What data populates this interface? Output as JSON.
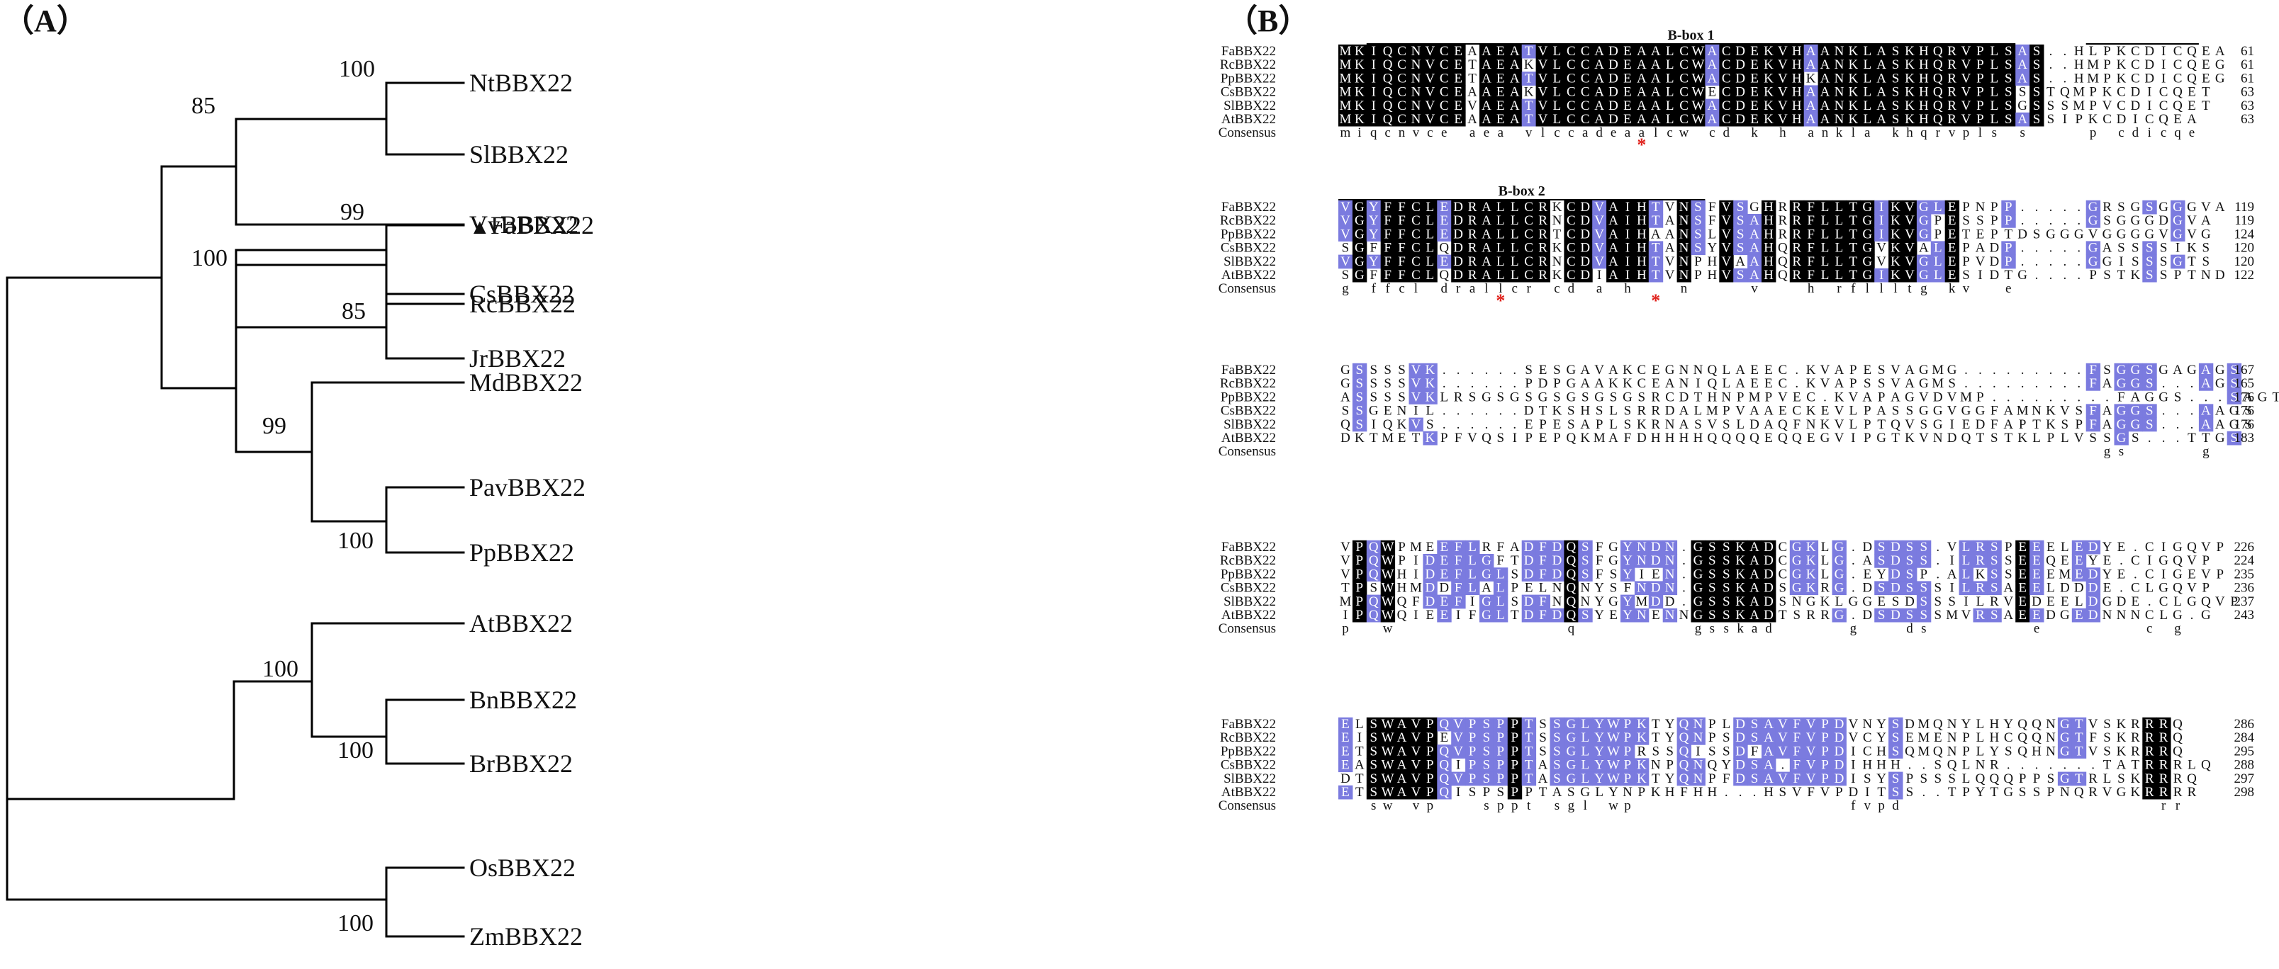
{
  "panel_a": {
    "label": "（A）",
    "marker": "▲",
    "taxa": [
      "NtBBX22",
      "SlBBX22",
      "VvBBX22",
      "CsBBX22",
      "JrBBX22",
      "FaBBX22",
      "RcBBX22",
      "MdBBX22",
      "PavBBX22",
      "PpBBX22",
      "AtBBX22",
      "BnBBX22",
      "BrBBX22",
      "OsBBX22",
      "ZmBBX22"
    ],
    "highlight_taxon": "FaBBX22",
    "bootstrap": [
      "100",
      "85",
      "85",
      "99",
      "100",
      "99",
      "100",
      "100",
      "100",
      "100"
    ]
  },
  "panel_b": {
    "label": "（B）",
    "consensus_label": "Consensus",
    "colors": {
      "identical": "#000000",
      "similar": "#7b7bdf",
      "text": "#111111",
      "mark": "#e0201a"
    },
    "blocks": [
      {
        "features": [
          "B-box 1"
        ],
        "names": [
          "FaBBX22",
          "RcBBX22",
          "PpBBX22",
          "CsBBX22",
          "SlBBX22",
          "AtBBX22"
        ],
        "rows": [
          "MKIQCNVCEAAEATVLCCADEAALCWACDEKVHAANKLASKHQRVPLSAS..HLPKCDICQEA",
          "MKIQCNVCETAEAKVLCCADEAALCWACDEKVHAANKLASKHQRVPLSAS..HMPKCDICQEG",
          "MKIQCNVCETAEATVLCCADEAALCWACDEKVHKANKLASKHQRVPLSAS..HMPKCDICQEG",
          "MKIQCNVCEAAEAKVLCCADEAALCWECDEKVHAANKLASKHQRVPLSSSTQMPKCDICQET",
          "MKIQCNVCEVAEATVLCCADEAALCWACDEKVHAANKLASKHQRVPLSGSSSMPVCDICQET",
          "MKIQCNVCEAAEATVLCCADEAALCWACDEKVHAANKLASKHQRVPLSASSIPKCDICQEA"
        ],
        "ends": [
          "61",
          "61",
          "61",
          "63",
          "63",
          "63"
        ],
        "consensus": "miqcnvce aea vlccadeaalcw cd k h ankla khqrvpls s    p cdicqe",
        "marks": [
          "*"
        ]
      },
      {
        "features": [
          "B-box 2"
        ],
        "names": [
          "FaBBX22",
          "RcBBX22",
          "PpBBX22",
          "CsBBX22",
          "SlBBX22",
          "AtBBX22"
        ],
        "rows": [
          "VGYFFCLEDRALLCRKCDVAIHTVNSFVSGHRRFLLTGIKVGLEPNPP.....GRSGSGGGVA",
          "VGYFFCLEDRALLCRNCDVAIHTANSFVSAHRRFLLTGIKVGPESSPP.....GSGGGDGVA",
          "VGYFFCLEDRALLCRTCDVAIHAANSLVSAHRRFLLTGIKVGPETEPTDSGGGVGGGGVGVG",
          "SGFFFCLQDRALLCRKCDVAIHTANSYVSAHQRFLLTGVKVALEPADP.....GASSSSIKS",
          "VGYFFCLEDRALLCRNCDVAIHTVNPHVAAHQRFLLTGVKVGLEPVDP.....GGISSSGTS",
          "SGFFFCLQDRALLCRKCDIAIHTVNPHVSAHQRFLLTGIKVGLESIDTG....PSTKSSPTND"
        ],
        "ends": [
          "119",
          "119",
          "124",
          "120",
          "120",
          "122"
        ],
        "consensus": "g ffcl drallcr cd a h   n    v   h rfllltg kv  e",
        "marks": [
          "*",
          "*"
        ]
      },
      {
        "features": [],
        "names": [
          "FaBBX22",
          "RcBBX22",
          "PpBBX22",
          "CsBBX22",
          "SlBBX22",
          "AtBBX22"
        ],
        "rows": [
          "GSSSSVK......SESGAVAKCEGNNQLAEEC.KVAPESVAGMG.........FSGGSGAGAGS",
          "GSSSSVK......PDPGAAKKCEANIQLAEEC.KVAPSSVAGMS.........FAGGS...AGS",
          "ASSSSVKLRSGSGSGSGSGSGSRCDTHNPMPVEC.KVAPAGVDVMP.........FAGGS...SAGT",
          "SSGENIL......DTKSHSLSRRDALMPVAAECKEVLPASSGGVGGFAMNKVSFAGGS...AAGS",
          "QSIQKVS......EPESAPLSKRNASVSLDAQFNKVLPTQVSGIEDFAPTKSPFAGGS...AAGS",
          "DKTMETKPFVQSIPEPQKMAFDHHHHQQQQEQQEGVIPGTKVNDQTSTKLPLVSSGS...TTGS"
        ],
        "ends": [
          "167",
          "165",
          "176",
          "176",
          "176",
          "183"
        ],
        "consensus": "                                                      gs     g",
        "marks": []
      },
      {
        "features": [],
        "names": [
          "FaBBX22",
          "RcBBX22",
          "PpBBX22",
          "CsBBX22",
          "SlBBX22",
          "AtBBX22"
        ],
        "rows": [
          "VPQWPMEEFLRFADFDQSFGYNDN.GSSKADCGKLG.DSDSS.VLRSPEEELEDYE.CIGQVP",
          "VPQWPIDEFLGFTDFDQSFGYNDN.GSSKADCGKLG.ASDSS.ILRSSEEQEEYE.CIGQVP",
          "VPQWHIDEFLGLSDFDQSFSYIEN.GSSKADCGKLG.EYDSP.ALKSSEEEMEDYE.CIGEVP",
          "TPSWHMDDFLALPELNQNYSFNDN.GSSKADSGKRG.DSDSSSILRSAEELDDDE.CLGQVP",
          "MPQWQFDEFIGLSDFNQNYGYMDD.GSSKADSNGKLGGESDSSSILRVEDEELDGDE.CLGQVP",
          "IPQWQIEEIFGLTDFDQSYEYNENNGSSKADTSRRG.DSDSSSMVRSAEEDGEDNNNCLG.G"
        ],
        "ends": [
          "226",
          "224",
          "235",
          "236",
          "237",
          "243"
        ],
        "consensus": "p  w            q        gsskad     g   ds       e       c g",
        "marks": []
      },
      {
        "features": [],
        "names": [
          "FaBBX22",
          "RcBBX22",
          "PpBBX22",
          "CsBBX22",
          "SlBBX22",
          "AtBBX22"
        ],
        "rows": [
          "ELSWAVPQVPSPPTSSGLYWPKTYQNPLDSAVFVPDVNYSDMQNYLHYQQNGTVSKRRRQ",
          "EISWAVPEVPSPPTSSGLYWPKTYQNPSDSAVFVPDVCYSEMENPLHCQQNGTFSKRRRQ",
          "ETSWAVPQVPSPPTSSGLYWPRSSQISSDFAVFVPDICHSQMQNPLYSQHNGTVSKRRRQ",
          "EASWAVPQIPSPPTASGLYWPKNPQNQYDSA.FVPDIHHH..SQLNR.......TATRRRLQ",
          "DTSWAVPQVPSPPTASGLYWPKTYQNPFDSAVFVPDISYSPSSSLQQQPPSGTRLSKRRRQ",
          "ETSWAVPQISPSPPTASGLYNPKHFHH...HSVFVPDITSS..TPYTGSSPNQRVGKRRRR"
        ],
        "ends": [
          "286",
          "284",
          "295",
          "288",
          "297",
          "298"
        ],
        "consensus": "  sw vp   sppt sgl wp               fvpd                  rr",
        "marks": []
      }
    ]
  }
}
